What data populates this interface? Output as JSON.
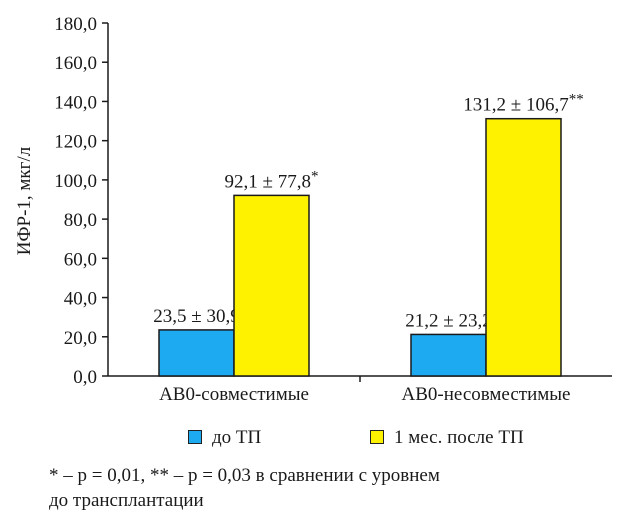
{
  "chart_data": {
    "type": "bar",
    "ylabel": "ИФР-1, мкг/л",
    "ylim": [
      0,
      180
    ],
    "yticks": [
      "0,0",
      "20,0",
      "40,0",
      "60,0",
      "80,0",
      "100,0",
      "120,0",
      "140,0",
      "160,0",
      "180,0"
    ],
    "categories": [
      "АВ0-совместимые",
      "АВ0-несовместимые"
    ],
    "series": [
      {
        "name": "до ТП",
        "color": "#1eaaf1",
        "values": [
          23.5,
          21.2
        ],
        "labels": [
          "23,5 ± 30,9",
          "21,2 ± 23,2"
        ]
      },
      {
        "name": "1 мес. после ТП",
        "color": "#fff200",
        "values": [
          92.1,
          131.2
        ],
        "labels": [
          "92,1 ± 77,8*",
          "131,2 ± 106,7**"
        ]
      }
    ],
    "grid": false,
    "legend_position": "bottom"
  },
  "footnote": {
    "line1": "* – p = 0,01, ** – p = 0,03 в сравнении с уровнем",
    "line2": "до трансплантации"
  }
}
